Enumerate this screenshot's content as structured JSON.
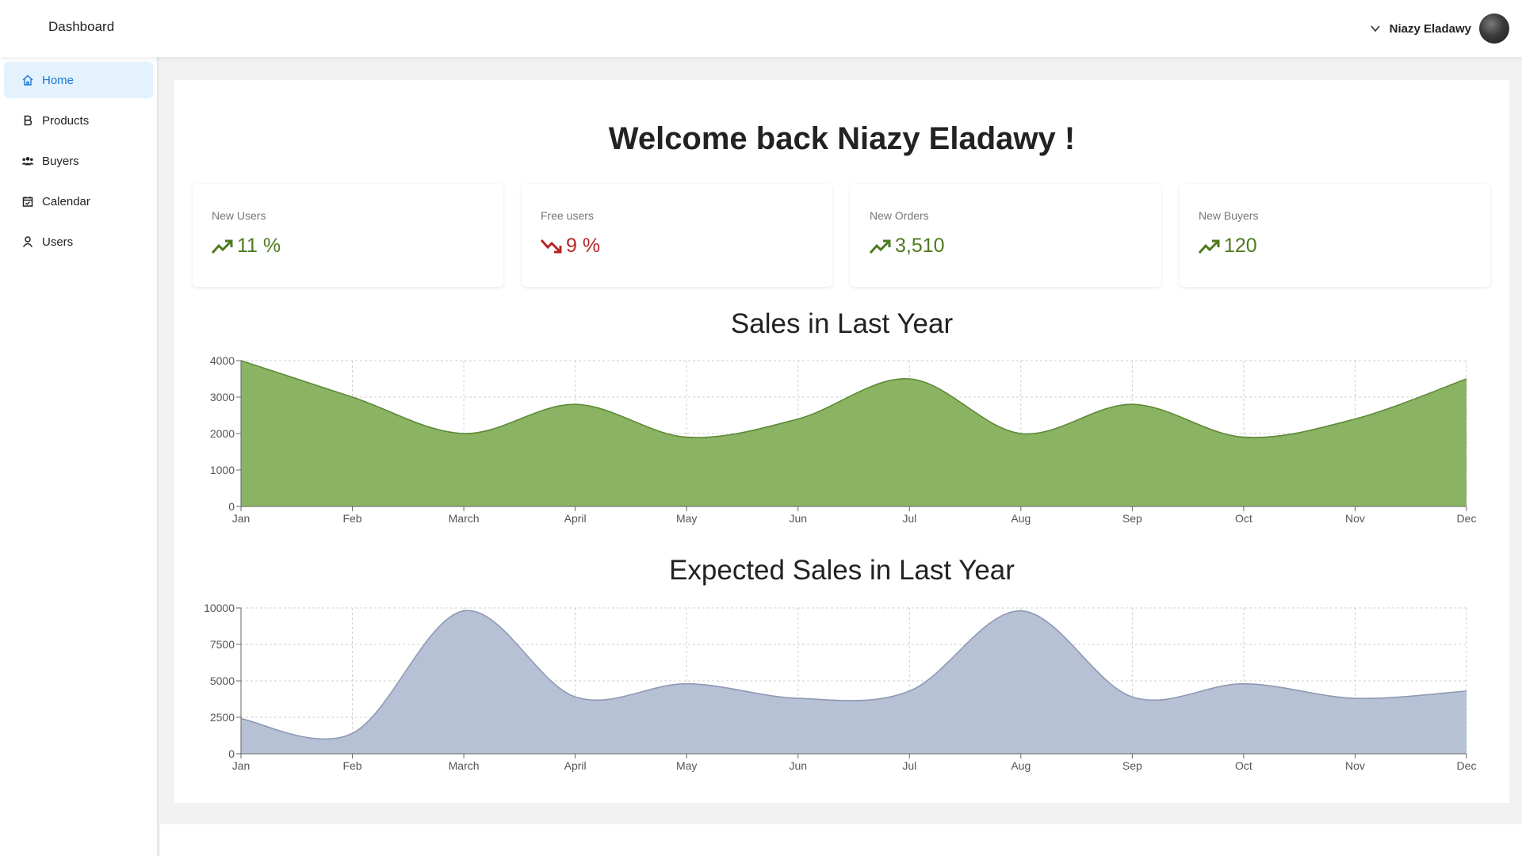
{
  "header": {
    "title": "Dashboard",
    "user_name": "Niazy Eladawy"
  },
  "sidebar": {
    "items": [
      {
        "label": "Home",
        "icon": "home-icon",
        "active": true
      },
      {
        "label": "Products",
        "icon": "bold-b-icon",
        "active": false
      },
      {
        "label": "Buyers",
        "icon": "people-icon",
        "active": false
      },
      {
        "label": "Calendar",
        "icon": "calendar-icon",
        "active": false
      },
      {
        "label": "Users",
        "icon": "user-icon",
        "active": false
      }
    ]
  },
  "main": {
    "welcome": "Welcome back Niazy Eladawy !",
    "stats": [
      {
        "label": "New Users",
        "value": "11 %",
        "trend": "up"
      },
      {
        "label": "Free users",
        "value": "9 %",
        "trend": "down"
      },
      {
        "label": "New Orders",
        "value": "3,510",
        "trend": "up"
      },
      {
        "label": "New Buyers",
        "value": "120",
        "trend": "up"
      }
    ]
  },
  "colors": {
    "accent": "#1976d2",
    "up": "#4d7a1e",
    "down": "#b52626",
    "sales_fill": "#8ab363",
    "sales_stroke": "#5e8a36",
    "expected_fill": "#b7c1d6",
    "expected_stroke": "#8e9ab3"
  },
  "chart_data": [
    {
      "type": "area",
      "title": "Sales in Last Year",
      "categories": [
        "Jan",
        "Feb",
        "March",
        "April",
        "May",
        "Jun",
        "Jul",
        "Aug",
        "Sep",
        "Oct",
        "Nov",
        "Dec"
      ],
      "values": [
        4000,
        3000,
        2000,
        2800,
        1900,
        2400,
        3500,
        2000,
        2800,
        1900,
        2400,
        3500
      ],
      "ylim": [
        0,
        4000
      ],
      "yticks": [
        0,
        1000,
        2000,
        3000,
        4000
      ],
      "grid": true
    },
    {
      "type": "area",
      "title": "Expected Sales in Last Year",
      "categories": [
        "Jan",
        "Feb",
        "March",
        "April",
        "May",
        "Jun",
        "Jul",
        "Aug",
        "Sep",
        "Oct",
        "Nov",
        "Dec"
      ],
      "values": [
        2400,
        1400,
        9800,
        3900,
        4800,
        3800,
        4300,
        9800,
        3900,
        4800,
        3800,
        4300
      ],
      "ylim": [
        0,
        10000
      ],
      "yticks": [
        0,
        2500,
        5000,
        7500,
        10000
      ],
      "grid": true
    }
  ]
}
